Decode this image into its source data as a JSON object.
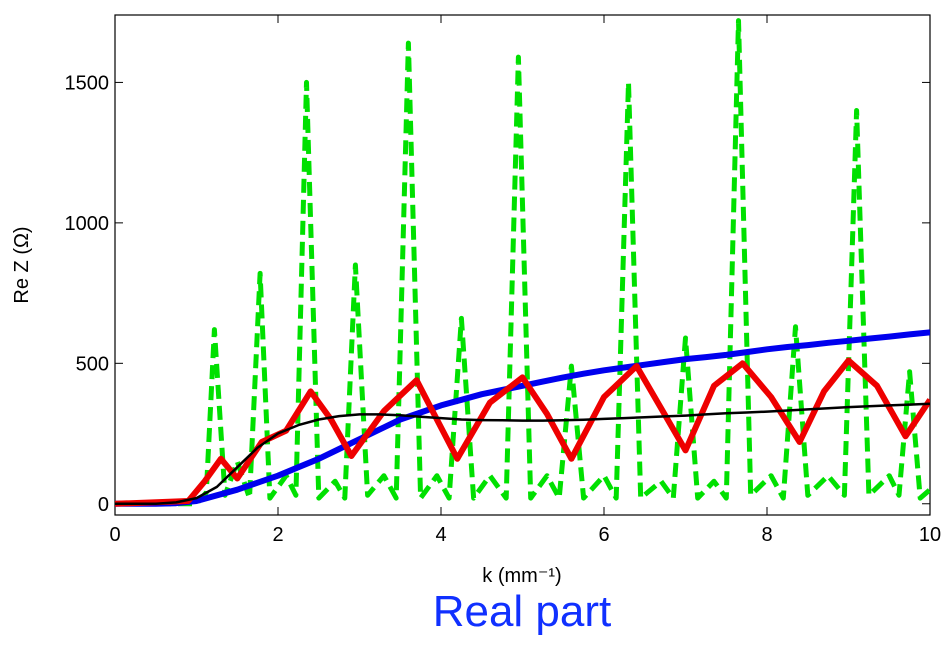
{
  "chart_data": {
    "type": "line",
    "title": "Real part",
    "xlabel": "k (mm⁻¹)",
    "ylabel": "Re Z (Ω)",
    "xlim": [
      0,
      10
    ],
    "ylim": [
      -40,
      1740
    ],
    "xticks": [
      0,
      2,
      4,
      6,
      8,
      10
    ],
    "yticks": [
      0,
      500,
      1000,
      1500
    ],
    "x": [
      0,
      0.25,
      0.5,
      0.75,
      1,
      1.25,
      1.5,
      1.75,
      2,
      2.25,
      2.5,
      2.75,
      3,
      3.25,
      3.5,
      3.75,
      4,
      4.25,
      4.5,
      4.75,
      5,
      5.25,
      5.5,
      5.75,
      6,
      6.25,
      6.5,
      6.75,
      7,
      7.25,
      7.5,
      7.75,
      8,
      8.25,
      8.5,
      8.75,
      9,
      9.25,
      9.5,
      9.75,
      10
    ],
    "series": [
      {
        "color": "#00e000",
        "dashed": true,
        "width": 5,
        "x": [
          0,
          1.0,
          1.12,
          1.22,
          1.35,
          1.5,
          1.65,
          1.78,
          1.9,
          2.1,
          2.22,
          2.35,
          2.5,
          2.7,
          2.82,
          2.95,
          3.1,
          3.3,
          3.45,
          3.6,
          3.75,
          3.95,
          4.1,
          4.25,
          4.4,
          4.6,
          4.8,
          4.95,
          5.1,
          5.3,
          5.45,
          5.6,
          5.75,
          6.0,
          6.15,
          6.3,
          6.45,
          6.7,
          6.85,
          7.0,
          7.15,
          7.35,
          7.5,
          7.65,
          7.8,
          8.05,
          8.2,
          8.35,
          8.5,
          8.75,
          8.95,
          9.1,
          9.25,
          9.5,
          9.62,
          9.75,
          9.88,
          10
        ],
        "values": [
          0,
          0,
          40,
          620,
          30,
          150,
          20,
          820,
          20,
          100,
          30,
          1500,
          20,
          80,
          20,
          850,
          30,
          100,
          20,
          1640,
          20,
          100,
          20,
          660,
          20,
          100,
          20,
          1590,
          20,
          100,
          20,
          490,
          20,
          100,
          20,
          1500,
          20,
          80,
          20,
          590,
          20,
          80,
          20,
          1720,
          30,
          100,
          20,
          630,
          30,
          100,
          30,
          1400,
          30,
          100,
          30,
          470,
          20,
          50
        ]
      },
      {
        "color": "#0000ee",
        "width": 6,
        "values": [
          0,
          0,
          0,
          2,
          10,
          30,
          50,
          75,
          100,
          130,
          160,
          195,
          230,
          265,
          300,
          325,
          350,
          370,
          390,
          405,
          420,
          435,
          450,
          463,
          475,
          485,
          495,
          505,
          515,
          522,
          530,
          540,
          550,
          558,
          565,
          573,
          580,
          588,
          595,
          603,
          610
        ]
      },
      {
        "color": "#ee0000",
        "width": 6,
        "x": [
          0,
          0.9,
          1.1,
          1.3,
          1.5,
          1.8,
          2.1,
          2.4,
          2.65,
          2.9,
          3.3,
          3.7,
          3.95,
          4.2,
          4.6,
          5.0,
          5.3,
          5.6,
          6.0,
          6.4,
          6.7,
          7.0,
          7.35,
          7.7,
          8.05,
          8.4,
          8.7,
          9.0,
          9.35,
          9.7,
          10
        ],
        "values": [
          0,
          10,
          80,
          160,
          90,
          220,
          260,
          400,
          300,
          170,
          330,
          440,
          300,
          160,
          360,
          450,
          320,
          160,
          380,
          490,
          340,
          190,
          420,
          500,
          380,
          220,
          400,
          510,
          420,
          240,
          370
        ]
      },
      {
        "color": "#000000",
        "width": 2.5,
        "values": [
          0,
          0,
          0,
          5,
          20,
          60,
          130,
          200,
          250,
          280,
          300,
          312,
          318,
          318,
          315,
          310,
          305,
          300,
          298,
          297,
          296,
          296,
          297,
          299,
          302,
          305,
          308,
          311,
          314,
          318,
          322,
          325,
          328,
          332,
          336,
          340,
          344,
          347,
          350,
          353,
          356
        ]
      }
    ]
  }
}
